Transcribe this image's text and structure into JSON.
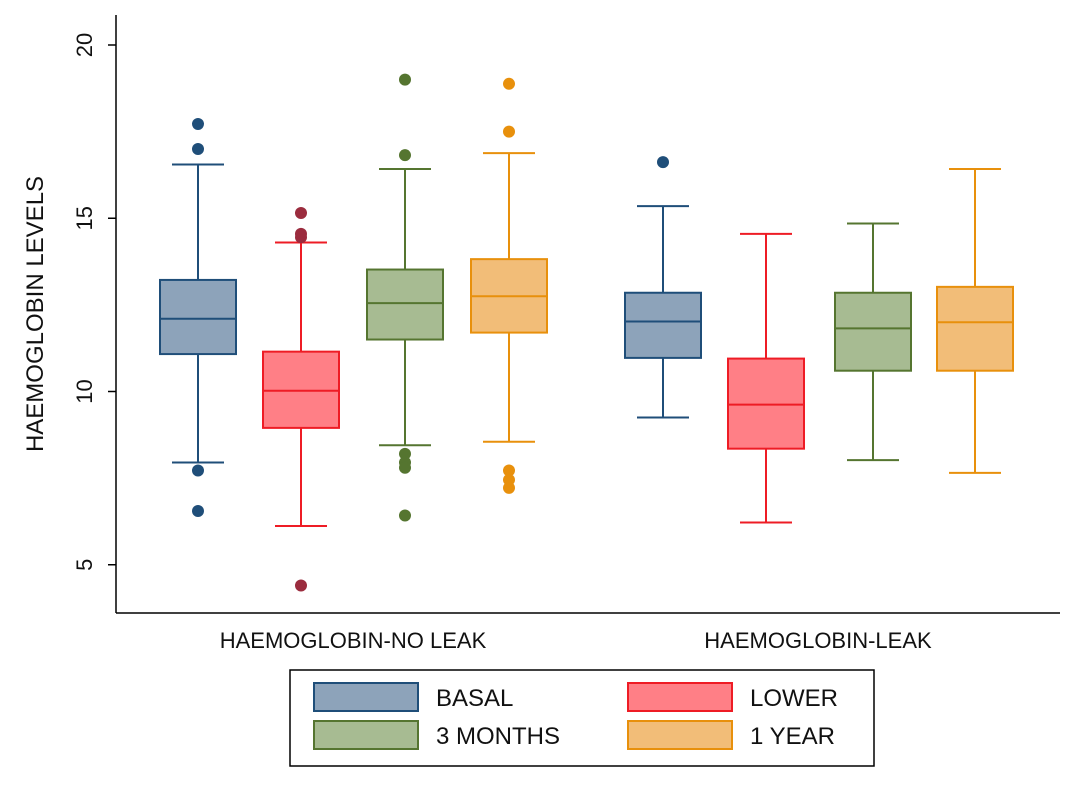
{
  "chart_data": {
    "type": "boxplot",
    "title": "",
    "xlabel": "",
    "ylabel": "HAEMOGLOBIN LEVELS",
    "ylim": [
      3.5,
      20.8
    ],
    "yticks": [
      5,
      10,
      15,
      20
    ],
    "grid": false,
    "legend_position": "bottom",
    "groups": [
      "HAEMOGLOBIN-NO LEAK",
      "HAEMOGLOBIN-LEAK"
    ],
    "series": [
      {
        "name": "BASAL",
        "fill": "#8da3ba",
        "stroke": "#1f4e79",
        "outlier_color": "#1f4e79"
      },
      {
        "name": "LOWER",
        "fill": "#ff7f86",
        "stroke": "#ee1c25",
        "outlier_color": "#9b2c3e"
      },
      {
        "name": "3 MONTHS",
        "fill": "#a7bb92",
        "stroke": "#557530",
        "outlier_color": "#557530"
      },
      {
        "name": "1 YEAR",
        "fill": "#f2bd78",
        "stroke": "#e8900c",
        "outlier_color": "#e8900c"
      }
    ],
    "boxes": [
      {
        "group": 0,
        "series": 0,
        "whisker_low": 7.95,
        "q1": 11.08,
        "median": 12.1,
        "q3": 13.22,
        "whisker_high": 16.55,
        "outliers": [
          17.72,
          17.0,
          7.72,
          6.55
        ]
      },
      {
        "group": 0,
        "series": 1,
        "whisker_low": 6.12,
        "q1": 8.95,
        "median": 10.02,
        "q3": 11.15,
        "whisker_high": 14.3,
        "outliers": [
          15.15,
          14.55,
          14.45,
          4.4
        ]
      },
      {
        "group": 0,
        "series": 2,
        "whisker_low": 8.45,
        "q1": 11.5,
        "median": 12.55,
        "q3": 13.52,
        "whisker_high": 16.42,
        "outliers": [
          19.0,
          16.82,
          8.2,
          7.95,
          7.8,
          6.42
        ]
      },
      {
        "group": 0,
        "series": 3,
        "whisker_low": 8.55,
        "q1": 11.7,
        "median": 12.75,
        "q3": 13.82,
        "whisker_high": 16.88,
        "outliers": [
          18.88,
          17.5,
          7.72,
          7.45,
          7.22
        ]
      },
      {
        "group": 1,
        "series": 0,
        "whisker_low": 9.25,
        "q1": 10.97,
        "median": 12.02,
        "q3": 12.85,
        "whisker_high": 15.35,
        "outliers": [
          16.62
        ]
      },
      {
        "group": 1,
        "series": 1,
        "whisker_low": 6.22,
        "q1": 8.35,
        "median": 9.62,
        "q3": 10.95,
        "whisker_high": 14.55,
        "outliers": []
      },
      {
        "group": 1,
        "series": 2,
        "whisker_low": 8.02,
        "q1": 10.6,
        "median": 11.82,
        "q3": 12.85,
        "whisker_high": 14.85,
        "outliers": []
      },
      {
        "group": 1,
        "series": 3,
        "whisker_low": 7.65,
        "q1": 10.6,
        "median": 12.0,
        "q3": 13.02,
        "whisker_high": 16.42,
        "outliers": []
      }
    ]
  }
}
